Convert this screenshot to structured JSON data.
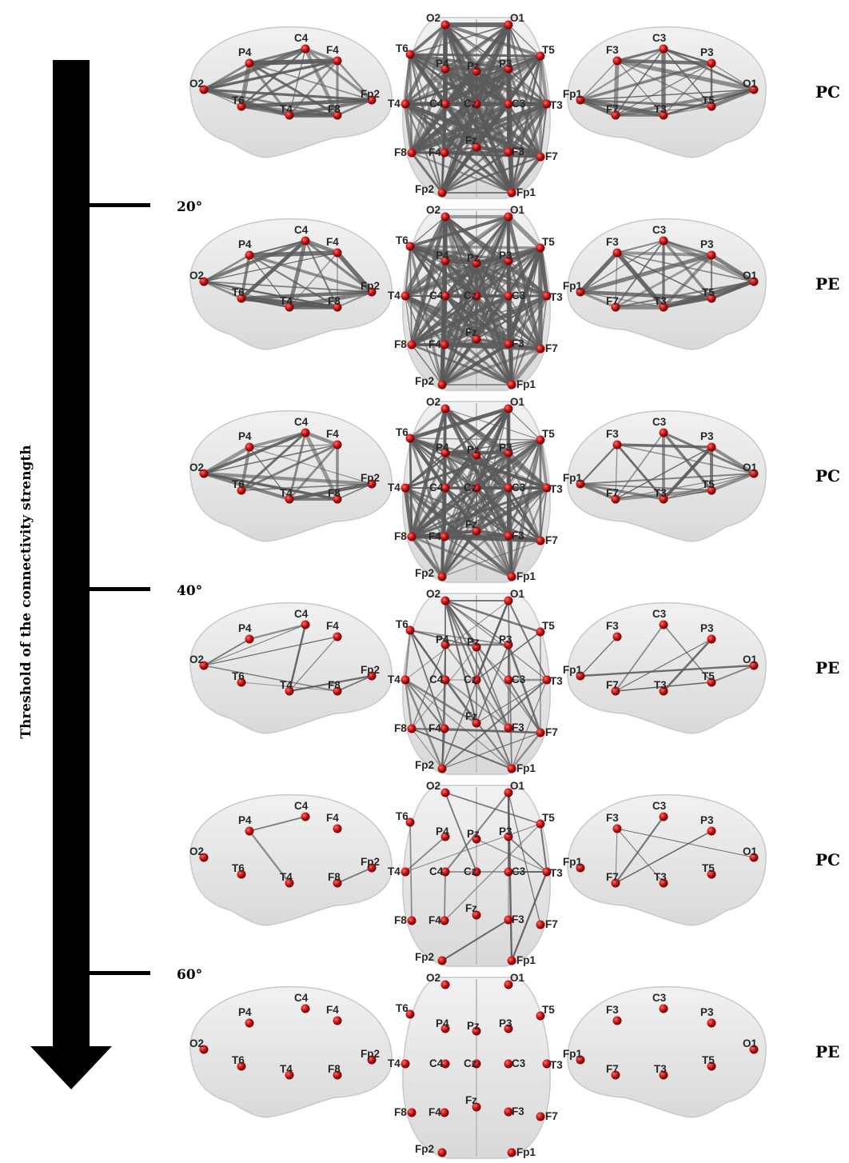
{
  "axis": {
    "label": "Threshold of the connectivity strength",
    "ticks": [
      "20°",
      "40°",
      "60°"
    ]
  },
  "colors": {
    "electrode": "#c41414",
    "edge": "#5a5a5a",
    "brain": "#e6e6e6",
    "arrow": "#000000"
  },
  "views": {
    "left_brain": [
      "C4",
      "F4",
      "P4",
      "O2",
      "T6",
      "T4",
      "F8",
      "Fp2"
    ],
    "right_brain": [
      "C3",
      "F3",
      "P3",
      "O1",
      "T5",
      "T3",
      "F7",
      "Fp1"
    ],
    "top_view": [
      "O2",
      "O1",
      "T6",
      "P4",
      "Pz",
      "P3",
      "T5",
      "T4",
      "C4",
      "Cz",
      "C3",
      "T3",
      "F8",
      "F4",
      "Fz",
      "F3",
      "F7",
      "Fp2",
      "Fp1"
    ]
  },
  "rows": [
    {
      "group": "PC",
      "edge_density": 1.0
    },
    {
      "group": "PE",
      "edge_density": 0.95
    },
    {
      "group": "PC",
      "edge_density": 0.78
    },
    {
      "group": "PE",
      "edge_density": 0.35
    },
    {
      "group": "PC",
      "edge_density": 0.12
    },
    {
      "group": "PE",
      "edge_density": 0.0
    }
  ]
}
